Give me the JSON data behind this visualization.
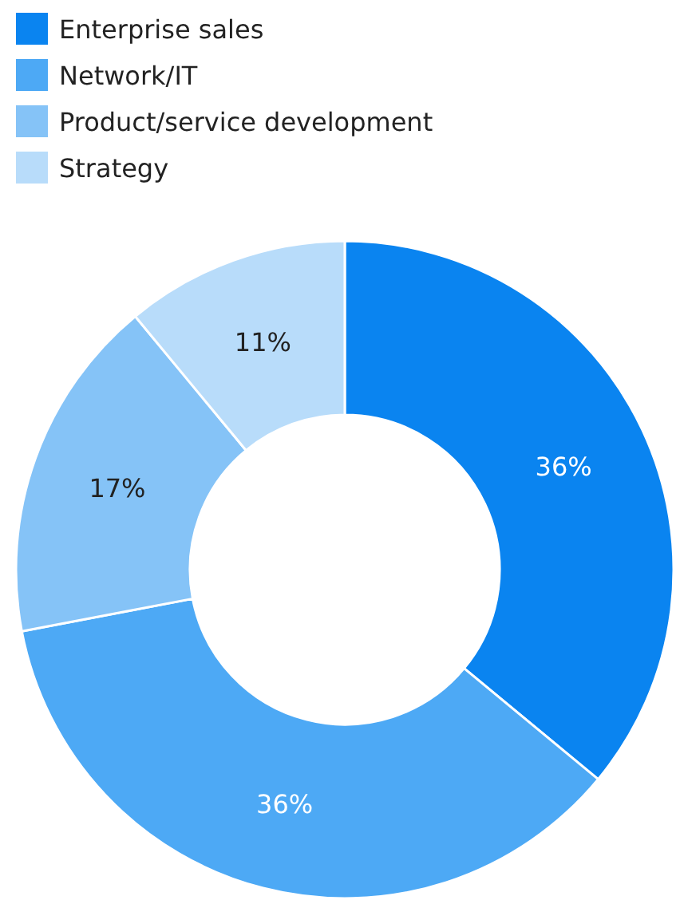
{
  "chart_data": {
    "type": "donut",
    "categories": [
      "Enterprise sales",
      "Network/IT",
      "Product/service development",
      "Strategy"
    ],
    "values": [
      36,
      36,
      17,
      11
    ],
    "value_labels": [
      "36%",
      "36%",
      "17%",
      "11%"
    ],
    "colors": [
      "#0a84f0",
      "#4da9f5",
      "#85c3f7",
      "#b8dcfa"
    ],
    "legend": "top left"
  }
}
